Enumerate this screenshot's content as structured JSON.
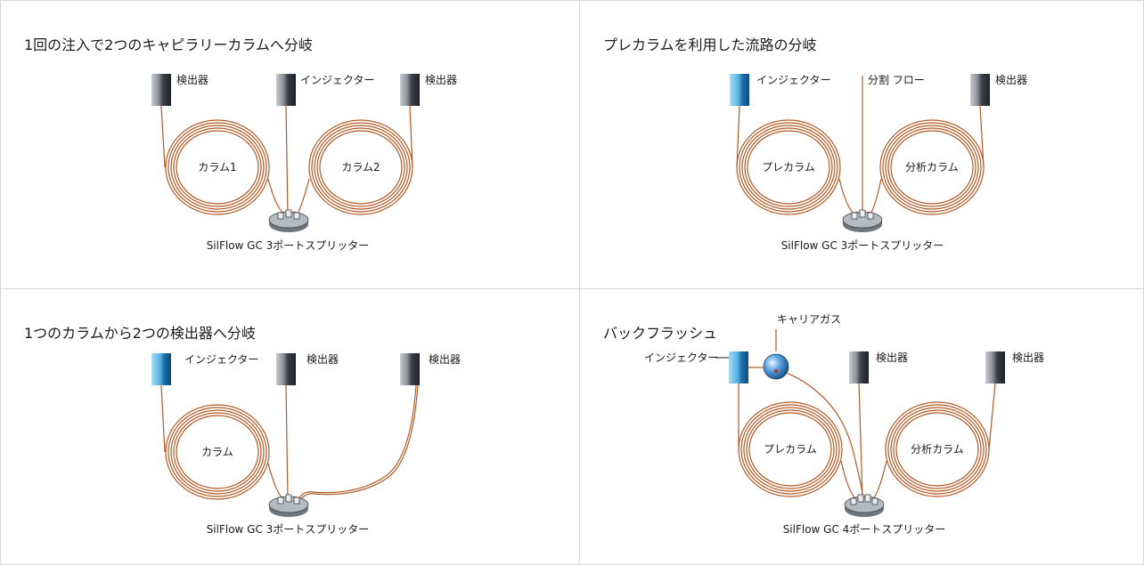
{
  "colors": {
    "tubing": "#b25a25",
    "detector_light": "#c9ccd0",
    "detector_dark": "#2b2f36",
    "injector_light": "#8fd0f0",
    "injector_dark": "#0f5e93",
    "splitter": "#9aa3ac",
    "carrier_gas": "#2f7fc4",
    "border": "#d8d8d8"
  },
  "icons": [
    "detector-icon",
    "injector-icon",
    "column-coil-icon",
    "splitter-icon",
    "carrier-gas-sphere-icon"
  ],
  "panels": [
    {
      "title": "1回の注入で2つのキャピラリーカラムへ分岐",
      "labels": {
        "d1": "検出器",
        "inj": "インジェクター",
        "d2": "検出器",
        "col1": "カラム1",
        "col2": "カラム2",
        "splitter": "SilFlow GC 3ポートスプリッター"
      }
    },
    {
      "title": "プレカラムを利用した流路の分岐",
      "labels": {
        "inj": "インジェクター",
        "split": "分割 フロー",
        "det": "検出器",
        "pre": "プレカラム",
        "ana": "分析カラム",
        "splitter": "SilFlow GC 3ポートスプリッター"
      }
    },
    {
      "title": "1つのカラムから2つの検出器へ分岐",
      "labels": {
        "inj": "インジェクター",
        "d1": "検出器",
        "d2": "検出器",
        "col": "カラム",
        "splitter": "SilFlow GC 3ポートスプリッター"
      }
    },
    {
      "title": "バックフラッシュ",
      "labels": {
        "carrier": "キャリアガス",
        "inj": "インジェクター",
        "d1": "検出器",
        "d2": "検出器",
        "pre": "プレカラム",
        "ana": "分析カラム",
        "splitter": "SilFlow GC 4ポートスプリッター"
      }
    }
  ]
}
